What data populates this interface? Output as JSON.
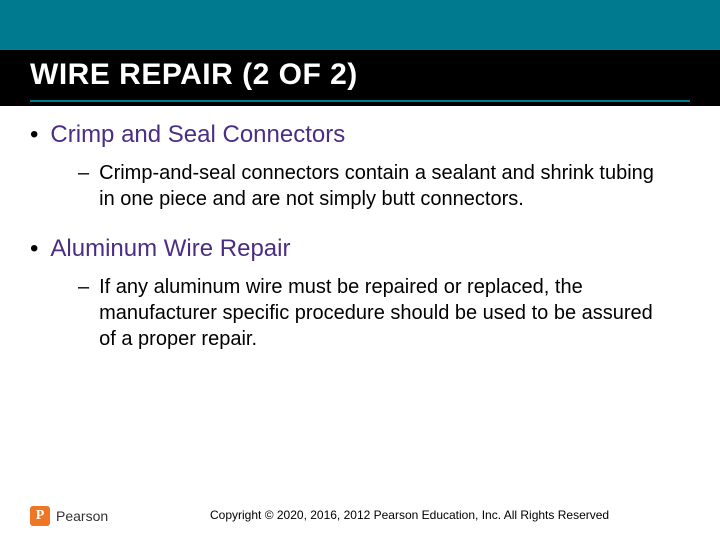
{
  "colors": {
    "teal": "#007a8e",
    "black": "#000000",
    "purple": "#4b2e83",
    "orange": "#ee7624",
    "white": "#ffffff"
  },
  "typography": {
    "title_fontsize": 30,
    "bullet1_fontsize": 24,
    "sub_fontsize": 20,
    "footer_fontsize": 12,
    "family": "Arial"
  },
  "title": "WIRE REPAIR (2 OF 2)",
  "bullets": [
    {
      "heading": "Crimp and Seal Connectors",
      "sub": "Crimp-and-seal connectors contain a sealant and shrink tubing in one piece and are not simply butt connectors."
    },
    {
      "heading": "Aluminum Wire Repair",
      "sub": "If any aluminum wire must be repaired or replaced, the manufacturer specific procedure should be used to be assured of a proper repair."
    }
  ],
  "logo": {
    "letter": "P",
    "brand": "Pearson"
  },
  "copyright": "Copyright © 2020, 2016, 2012 Pearson Education, Inc. All Rights Reserved"
}
